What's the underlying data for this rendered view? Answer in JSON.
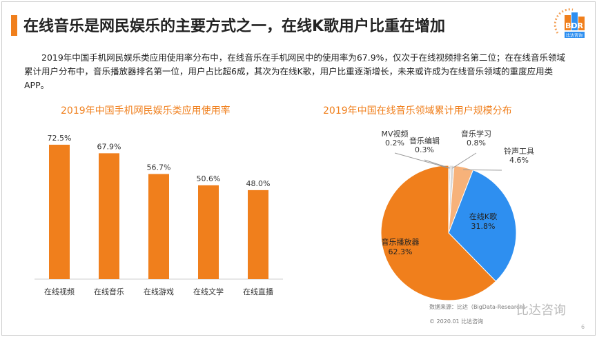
{
  "title": "在线音乐是网民娱乐的主要方式之一，在线K歌用户比重在增加",
  "logo_text": "BDR",
  "logo_sub": "比达咨询",
  "paragraph": "2019年中国手机网民娱乐类应用使用率分布中，在线音乐在手机网民中的使用率为67.9%，仅次于在线视频排名第二位；在在线音乐领域累计用户分布中，音乐播放器排名第一位，用户占比超6成，其次为在线K歌，用户比重逐渐增长，未来或许成为在线音乐领域的重度应用类APP。",
  "source": "数据来源：比达（BigData-Research）",
  "copyright": "© 2020.01  比达咨询",
  "page_number": "6",
  "watermark": "比达咨询",
  "chart_data": [
    {
      "type": "bar",
      "title": "2019年中国手机网民娱乐类应用使用率",
      "categories": [
        "在线视频",
        "在线音乐",
        "在线游戏",
        "在线文学",
        "在线直播"
      ],
      "values": [
        72.5,
        67.9,
        56.7,
        50.6,
        48.0
      ],
      "labels": [
        "72.5%",
        "67.9%",
        "56.7%",
        "50.6%",
        "48.0%"
      ],
      "ylim": [
        0,
        80
      ],
      "color": "#f07f1c"
    },
    {
      "type": "pie",
      "title": "2019年中国在线音乐领域累计用户规模分布",
      "slices": [
        {
          "name": "MV视频",
          "value": 0.2,
          "label": "0.2%",
          "color": "#9e9e9e"
        },
        {
          "name": "音乐编辑",
          "value": 0.3,
          "label": "0.3%",
          "color": "#bdbdbd"
        },
        {
          "name": "音乐学习",
          "value": 0.8,
          "label": "0.8%",
          "color": "#d9d9d9"
        },
        {
          "name": "铃声工具",
          "value": 4.6,
          "label": "4.6%",
          "color": "#f7b27a"
        },
        {
          "name": "在线K歌",
          "value": 31.8,
          "label": "31.8%",
          "color": "#2e8ff0"
        },
        {
          "name": "音乐播放器",
          "value": 62.3,
          "label": "62.3%",
          "color": "#f07f1c"
        }
      ]
    }
  ]
}
